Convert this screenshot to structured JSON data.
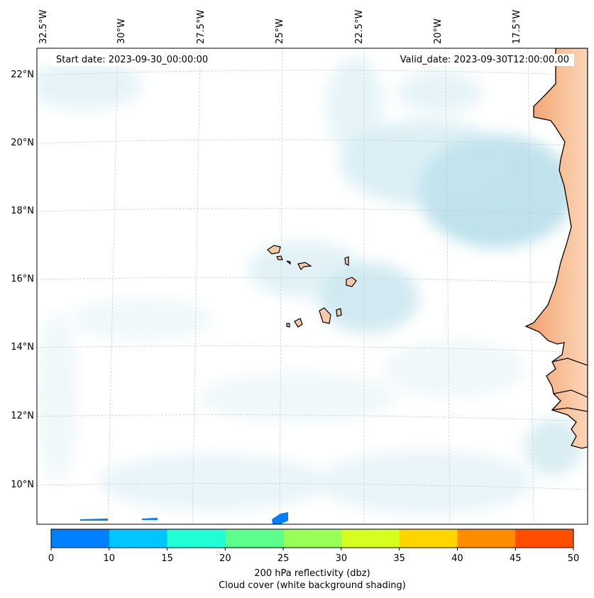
{
  "map": {
    "start_date_label": "Start date: 2023-09-30_00:00:00",
    "valid_date_label": "Valid_date: 2023-09-30T12:00:00.00",
    "lon_labels": [
      "32.5°W",
      "30°W",
      "27.5°W",
      "25°W",
      "22.5°W",
      "20°W",
      "17.5°W"
    ],
    "lat_labels": [
      "22°N",
      "20°N",
      "18°N",
      "16°N",
      "14°N",
      "12°N",
      "10°N"
    ],
    "land_color": "#f7b98a",
    "cloud_color": "#a9d8e6",
    "gridlines": true
  },
  "colorbar": {
    "ticks": [
      "0",
      "10",
      "15",
      "20",
      "25",
      "30",
      "35",
      "40",
      "45",
      "50"
    ],
    "colors": [
      "#0080ff",
      "#00c5ff",
      "#20ffd8",
      "#5dff8c",
      "#98ff58",
      "#d5ff1f",
      "#ffd500",
      "#ff8b00",
      "#ff4e00"
    ],
    "label_line1": "200 hPa reflectivity (dbz)",
    "label_line2": "Cloud cover (white background shading)"
  }
}
